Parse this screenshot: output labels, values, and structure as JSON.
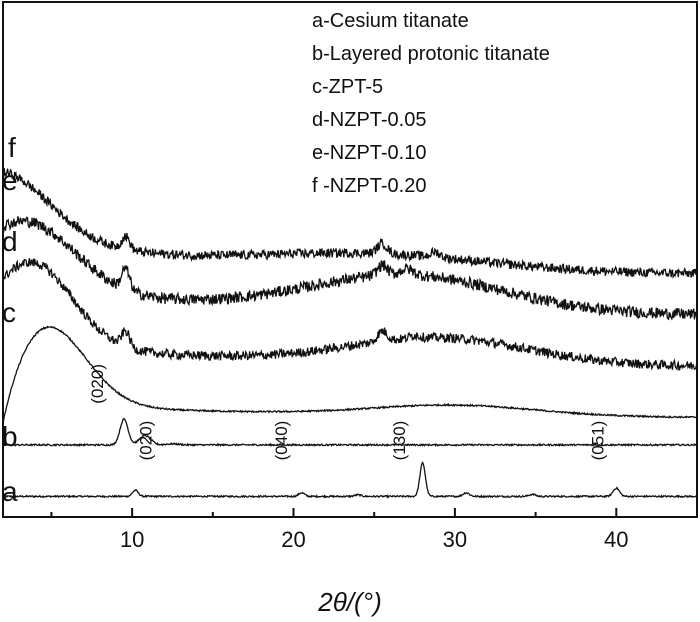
{
  "chart_data": {
    "type": "line",
    "title": "",
    "xlabel": "2θ/(°)",
    "ylabel": "",
    "xlim": [
      2,
      45
    ],
    "x_ticks": [
      10,
      20,
      30,
      40
    ],
    "y_ticks_shown": false,
    "legend": {
      "placement": "top-right",
      "entries": [
        "a-Cesium titanate",
        "b-Layered protonic titanate",
        "c-ZPT-5",
        "d-NZPT-0.05",
        "e-NZPT-0.10",
        "f -NZPT-0.20"
      ]
    },
    "series": [
      {
        "name": "a",
        "label": "a",
        "color": "#111111",
        "baseline": 0.04,
        "broad": [],
        "peaks": [
          [
            10.2,
            0.012,
            0.18
          ],
          [
            20.5,
            0.007,
            0.18
          ],
          [
            24.0,
            0.003,
            0.2
          ],
          [
            28.0,
            0.065,
            0.17
          ],
          [
            30.7,
            0.007,
            0.2
          ],
          [
            34.8,
            0.004,
            0.2
          ],
          [
            40.0,
            0.016,
            0.2
          ]
        ],
        "noise": 0.0015
      },
      {
        "name": "b",
        "label": "b",
        "color": "#111111",
        "baseline": 0.14,
        "broad": [],
        "peaks": [
          [
            9.5,
            0.05,
            0.25
          ],
          [
            10.8,
            0.018,
            0.35
          ],
          [
            12.5,
            0.002,
            0.4
          ]
        ],
        "noise": 0.0015
      },
      {
        "name": "c",
        "label": "c",
        "color": "#111111",
        "baseline": 0.19,
        "broad": [
          [
            4.5,
            0.17,
            2.5
          ],
          [
            30.0,
            0.02,
            5.0
          ]
        ],
        "decay": [
          0.03,
          20
        ],
        "start_drop": [
          0.14,
          1.3
        ],
        "peaks": [],
        "noise": 0.0015
      },
      {
        "name": "d",
        "label": "d",
        "color": "#111111",
        "baseline": 0.29,
        "broad": [
          [
            3.8,
            0.16,
            2.5
          ],
          [
            29.0,
            0.05,
            5.5
          ]
        ],
        "decay": [
          0.05,
          15
        ],
        "peaks": [
          [
            9.6,
            0.03,
            0.25
          ],
          [
            25.5,
            0.02,
            0.3
          ],
          [
            27.5,
            0.006,
            0.3
          ]
        ],
        "noise": 0.009
      },
      {
        "name": "e",
        "label": "e",
        "color": "#111111",
        "baseline": 0.39,
        "broad": [
          [
            3.5,
            0.13,
            3.0
          ],
          [
            27.0,
            0.07,
            6.0
          ]
        ],
        "decay": [
          0.06,
          14
        ],
        "peaks": [
          [
            9.6,
            0.04,
            0.25
          ],
          [
            25.5,
            0.02,
            0.3
          ],
          [
            27.0,
            0.012,
            0.4
          ]
        ],
        "noise": 0.011
      },
      {
        "name": "f",
        "label": "f",
        "color": "#111111",
        "baseline": 0.47,
        "broad": [
          [
            2.0,
            0.12,
            3.0
          ],
          [
            25.0,
            0.03,
            7.0
          ]
        ],
        "decay": [
          0.08,
          12
        ],
        "peaks": [
          [
            9.6,
            0.025,
            0.25
          ],
          [
            25.5,
            0.02,
            0.3
          ],
          [
            28.8,
            0.01,
            0.3
          ]
        ],
        "noise": 0.009
      }
    ],
    "annotations": [
      {
        "text": "(020)",
        "x": 8.2,
        "y": 0.22
      },
      {
        "text": "(020)",
        "x": 11.2,
        "y": 0.11
      },
      {
        "text": "(040)",
        "x": 19.6,
        "y": 0.11
      },
      {
        "text": "(130)",
        "x": 26.9,
        "y": 0.11
      },
      {
        "text": "(051)",
        "x": 39.2,
        "y": 0.11
      }
    ]
  }
}
